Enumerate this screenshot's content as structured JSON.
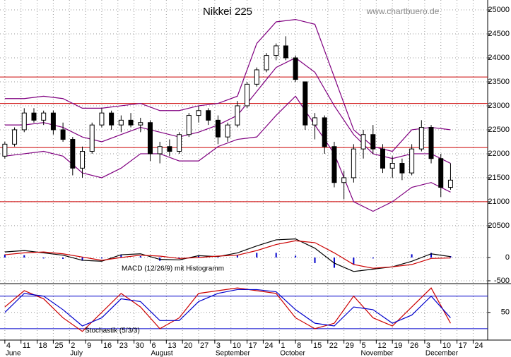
{
  "chart_data": {
    "type": "candlestick",
    "title": "Nikkei 225",
    "source": "www.chartbuero.de",
    "x": [
      0,
      3,
      6,
      9,
      12,
      15,
      18,
      21,
      24,
      27,
      30,
      33,
      36,
      39,
      42,
      45,
      48,
      51,
      54,
      57,
      60,
      63,
      66,
      69,
      72,
      75,
      78,
      81,
      84,
      87,
      90,
      93,
      96,
      99,
      102,
      105,
      108,
      111,
      114,
      117,
      120,
      123,
      126,
      129,
      132,
      135,
      138
    ],
    "open": [
      21950,
      22200,
      22500,
      22850,
      22700,
      22850,
      22500,
      22300,
      21700,
      22050,
      22600,
      22850,
      22600,
      22700,
      22600,
      22650,
      22000,
      22150,
      22050,
      22400,
      22800,
      22900,
      22700,
      22350,
      22600,
      23000,
      23450,
      23750,
      24050,
      24250,
      24000,
      23500,
      22600,
      22750,
      22150,
      21400,
      21500,
      22100,
      22400,
      22100,
      21700,
      21800,
      21600,
      22100,
      22550,
      21900,
      21300
    ],
    "high": [
      22250,
      22550,
      22950,
      22950,
      22900,
      22900,
      22650,
      22350,
      22150,
      22650,
      22950,
      22900,
      22800,
      22850,
      22750,
      22700,
      22250,
      22300,
      22450,
      22850,
      23000,
      22950,
      22800,
      22650,
      23100,
      23500,
      23800,
      24100,
      24300,
      24450,
      24050,
      23500,
      22850,
      22800,
      22250,
      21650,
      22200,
      22500,
      22600,
      22200,
      21950,
      21900,
      22200,
      22700,
      22600,
      22000,
      21800
    ],
    "low": [
      21900,
      22150,
      22450,
      22650,
      22600,
      22400,
      22250,
      21550,
      21500,
      22000,
      22550,
      22500,
      22450,
      22550,
      22450,
      21850,
      21800,
      21950,
      22000,
      22350,
      22650,
      22600,
      22200,
      22250,
      22550,
      22950,
      23400,
      23700,
      23950,
      23950,
      23500,
      22500,
      22300,
      22000,
      21300,
      21050,
      21400,
      21900,
      22000,
      21600,
      21500,
      21450,
      21550,
      22050,
      21800,
      21100,
      21250
    ],
    "close": [
      22200,
      22500,
      22850,
      22700,
      22850,
      22500,
      22300,
      21700,
      22050,
      22600,
      22850,
      22600,
      22700,
      22600,
      22650,
      22000,
      22150,
      22050,
      22400,
      22800,
      22900,
      22700,
      22350,
      22600,
      23000,
      23450,
      23750,
      24050,
      24250,
      24000,
      23550,
      22600,
      22750,
      22150,
      21400,
      21500,
      22100,
      22400,
      22100,
      21700,
      21800,
      21600,
      22100,
      22550,
      21900,
      21300,
      21450
    ],
    "up_color": "#ffffff",
    "down_color": "#000000",
    "xlim": [
      -1.5,
      149.5
    ],
    "xticks": [
      {
        "value": 0,
        "label": "4"
      },
      {
        "value": 5,
        "label": "11"
      },
      {
        "value": 10,
        "label": "18"
      },
      {
        "value": 15,
        "label": "25"
      },
      {
        "value": 20,
        "label": "2"
      },
      {
        "value": 25,
        "label": "9"
      },
      {
        "value": 30,
        "label": "16"
      },
      {
        "value": 35,
        "label": "23"
      },
      {
        "value": 40,
        "label": "30"
      },
      {
        "value": 45,
        "label": "6"
      },
      {
        "value": 50,
        "label": "13"
      },
      {
        "value": 55,
        "label": "20"
      },
      {
        "value": 60,
        "label": "27"
      },
      {
        "value": 65,
        "label": "3"
      },
      {
        "value": 70,
        "label": "10"
      },
      {
        "value": 75,
        "label": "17"
      },
      {
        "value": 80,
        "label": "24"
      },
      {
        "value": 85,
        "label": "1"
      },
      {
        "value": 90,
        "label": "8"
      },
      {
        "value": 95,
        "label": "15"
      },
      {
        "value": 100,
        "label": "22"
      },
      {
        "value": 105,
        "label": "29"
      },
      {
        "value": 110,
        "label": "5"
      },
      {
        "value": 115,
        "label": "12"
      },
      {
        "value": 120,
        "label": "19"
      },
      {
        "value": 125,
        "label": "26"
      },
      {
        "value": 130,
        "label": "3"
      },
      {
        "value": 135,
        "label": "10"
      },
      {
        "value": 140,
        "label": "17"
      },
      {
        "value": 145,
        "label": "24"
      }
    ],
    "month_labels": [
      {
        "value": 0,
        "label": "June"
      },
      {
        "value": 20,
        "label": "July"
      },
      {
        "value": 45,
        "label": "August"
      },
      {
        "value": 65,
        "label": "September"
      },
      {
        "value": 85,
        "label": "October"
      },
      {
        "value": 110,
        "label": "November"
      },
      {
        "value": 130,
        "label": "December"
      }
    ],
    "ylim": [
      20278,
      25206
    ],
    "yticks": [
      20500,
      21000,
      21500,
      22000,
      22500,
      23000,
      23500,
      24000,
      24500,
      25000
    ],
    "grid": true,
    "levels": [
      23600,
      23050,
      22130,
      21000
    ],
    "level_color": "#cc0000",
    "bands": {
      "color": "#800080",
      "x": [
        0,
        6,
        12,
        18,
        24,
        30,
        36,
        42,
        48,
        54,
        60,
        66,
        72,
        78,
        84,
        90,
        96,
        102,
        108,
        114,
        120,
        126,
        132,
        138
      ],
      "upper": [
        23150,
        23150,
        23200,
        23150,
        22950,
        22950,
        23000,
        23050,
        22900,
        22900,
        23000,
        23050,
        23200,
        24300,
        24750,
        24800,
        24700,
        23600,
        22500,
        22150,
        22050,
        22500,
        22550,
        22500
      ],
      "middle": [
        22600,
        22600,
        22650,
        22550,
        22350,
        22250,
        22400,
        22550,
        22450,
        22350,
        22450,
        22600,
        22800,
        23300,
        23800,
        24000,
        23700,
        23000,
        22400,
        22000,
        21900,
        22000,
        22000,
        21800
      ],
      "lower": [
        21950,
        22000,
        22050,
        21950,
        21600,
        21500,
        21700,
        22000,
        22000,
        21850,
        21850,
        22150,
        22300,
        22350,
        22800,
        23200,
        22600,
        22000,
        21000,
        20800,
        21000,
        21300,
        21400,
        21200
      ]
    },
    "macd": {
      "label": "MACD (12/26/9) mit Histogramm",
      "ylim": [
        -561,
        455
      ],
      "yticks": [
        -500,
        0
      ],
      "x": [
        0,
        6,
        12,
        18,
        24,
        30,
        36,
        42,
        48,
        54,
        60,
        66,
        72,
        78,
        84,
        90,
        96,
        102,
        108,
        114,
        120,
        126,
        132,
        138
      ],
      "macd": [
        120,
        150,
        100,
        50,
        -60,
        -80,
        60,
        80,
        -40,
        -50,
        40,
        20,
        100,
        250,
        380,
        400,
        200,
        -120,
        -300,
        -250,
        -200,
        -80,
        80,
        20
      ],
      "signal": [
        60,
        100,
        120,
        80,
        10,
        -60,
        0,
        50,
        30,
        -20,
        0,
        30,
        50,
        150,
        280,
        360,
        320,
        100,
        -150,
        -230,
        -200,
        -150,
        -20,
        -10
      ],
      "histogram": [
        60,
        50,
        -20,
        -30,
        -70,
        -20,
        60,
        30,
        -70,
        -30,
        40,
        -10,
        50,
        100,
        100,
        40,
        -120,
        -220,
        -150,
        -20,
        0,
        70,
        100,
        30
      ],
      "macd_color": "#000000",
      "signal_color": "#cc0000",
      "histogram_color": "#0000cc"
    },
    "stochastic": {
      "label": "Stochastik (5/3/3)",
      "ylim": [
        -1,
        103
      ],
      "yticks": [
        50
      ],
      "levels": [
        20,
        80
      ],
      "x": [
        0,
        6,
        12,
        18,
        24,
        30,
        36,
        42,
        48,
        54,
        60,
        66,
        72,
        78,
        84,
        90,
        96,
        102,
        108,
        114,
        120,
        126,
        132,
        138
      ],
      "k": [
        60,
        90,
        75,
        40,
        15,
        50,
        85,
        60,
        20,
        40,
        85,
        90,
        95,
        90,
        85,
        40,
        20,
        30,
        80,
        40,
        25,
        60,
        95,
        30
      ],
      "d": [
        50,
        85,
        80,
        55,
        25,
        40,
        75,
        70,
        35,
        35,
        70,
        85,
        92,
        92,
        88,
        55,
        30,
        25,
        60,
        55,
        30,
        45,
        80,
        40
      ],
      "k_color": "#cc0000",
      "d_color": "#0000cc",
      "level_color": "#0000cc"
    }
  }
}
